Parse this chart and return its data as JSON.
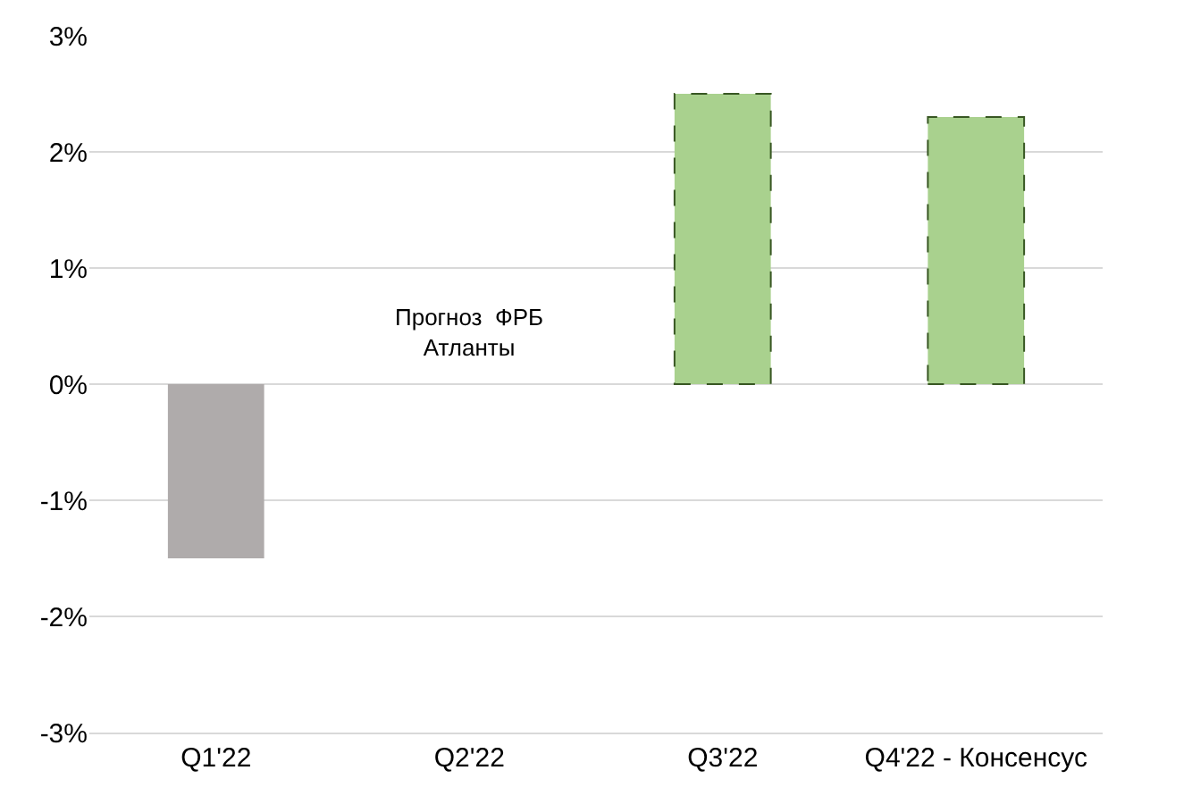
{
  "chart_data": {
    "type": "bar",
    "categories": [
      "Q1'22",
      "Q2'22",
      "Q3'22",
      "Q4'22 - Консенсус"
    ],
    "series": [
      {
        "color": "#afabab",
        "values": [
          -1.5,
          null,
          null,
          null
        ]
      },
      {
        "color": "#a9d18e",
        "line_style": "dashed",
        "values": [
          null,
          null,
          2.5,
          2.3
        ]
      }
    ],
    "ylim": [
      -3,
      3
    ],
    "yticks": [
      {
        "value": -3,
        "label": "-3%"
      },
      {
        "value": -2,
        "label": "-2%"
      },
      {
        "value": -1,
        "label": "-1%"
      },
      {
        "value": 0,
        "label": "0%"
      },
      {
        "value": 1,
        "label": "1%"
      },
      {
        "value": 2,
        "label": "2%"
      },
      {
        "value": 3,
        "label": "3%"
      }
    ],
    "grid": "y",
    "annotations": [
      "Прогноз  ФРБ\nАтланты"
    ]
  }
}
